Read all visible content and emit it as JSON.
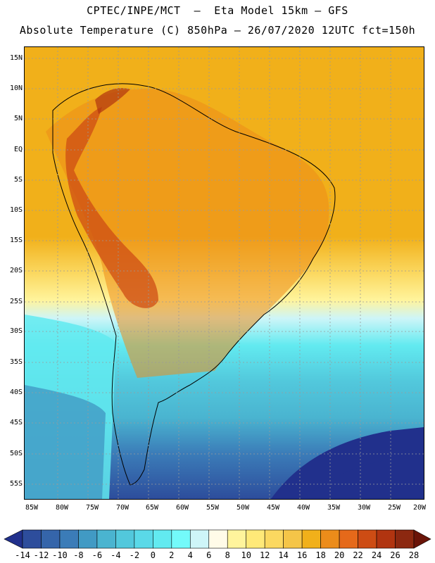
{
  "header": {
    "line1": "CPTEC/INPE/MCT  –  Eta Model 15km – GFS",
    "line2": "Absolute Temperature (C) 850hPa – 26/07/2020 12UTC fct=150h"
  },
  "map": {
    "lat_labels": [
      "15N",
      "10N",
      "5N",
      "EQ",
      "5S",
      "10S",
      "15S",
      "20S",
      "25S",
      "30S",
      "35S",
      "40S",
      "45S",
      "50S",
      "55S"
    ],
    "lon_labels": [
      "85W",
      "80W",
      "75W",
      "70W",
      "65W",
      "60W",
      "55W",
      "50W",
      "45W",
      "40W",
      "35W",
      "30W",
      "25W",
      "20W"
    ],
    "gridlines": true
  },
  "colorbar": {
    "levels": [
      "-14",
      "-12",
      "-10",
      "-8",
      "-6",
      "-4",
      "-2",
      "0",
      "2",
      "4",
      "6",
      "8",
      "10",
      "12",
      "14",
      "16",
      "18",
      "20",
      "22",
      "24",
      "26",
      "28"
    ],
    "colors": [
      "#21308c",
      "#2d4d9c",
      "#3565aa",
      "#3b7cb8",
      "#419ac4",
      "#4ab4d0",
      "#52c8dc",
      "#5ad9e8",
      "#62eaf0",
      "#73fafa",
      "#cef5f8",
      "#fffbe8",
      "#fff49c",
      "#ffe978",
      "#fbd860",
      "#f5c548",
      "#f1b01a",
      "#ec8c1a",
      "#e5691a",
      "#cd4c14",
      "#b13410",
      "#8c2810",
      "#6a1408"
    ]
  }
}
